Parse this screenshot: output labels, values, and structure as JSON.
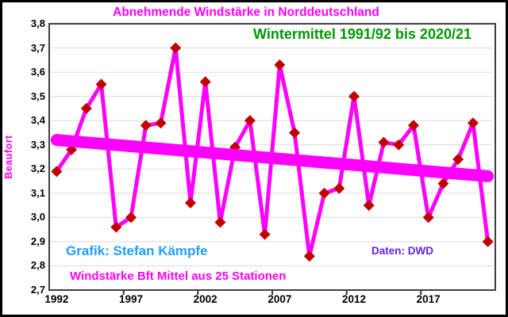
{
  "window": {
    "background": "#FFFFFF",
    "frame_color": "#000000"
  },
  "header": {
    "title": "Abnehmende Windstärke in Norddeutschland",
    "title_color": "#FF00FF",
    "subtitle": "Wintermittel 1991/92 bis 2020/21",
    "subtitle_color": "#009900"
  },
  "annotations": {
    "credit": "Grafik: Stefan Kämpfe",
    "credit_color": "#1E9FFF",
    "source": "Daten: DWD",
    "source_color": "#6A1FE0",
    "caption": "Windstärke Bft Mittel aus 25 Stationen",
    "caption_color": "#FF00FF"
  },
  "axes": {
    "ylabel": "Beaufort",
    "ylabel_color": "#FF00FF",
    "y_tick_labels": [
      "3,8",
      "3,7",
      "3,6",
      "3,5",
      "3,4",
      "3,3",
      "3,2",
      "3,1",
      "3,0",
      "2,9",
      "2,8",
      "2,7"
    ],
    "x_tick_labels": [
      "1992",
      "1997",
      "2002",
      "2007",
      "2012",
      "2017"
    ]
  },
  "chart_data": {
    "type": "line",
    "title": "Abnehmende Windstärke in Norddeutschland",
    "subtitle": "Wintermittel 1991/92 bis 2020/21",
    "xlabel": "",
    "ylabel": "Beaufort",
    "x": [
      1992,
      1993,
      1994,
      1995,
      1996,
      1997,
      1998,
      1999,
      2000,
      2001,
      2002,
      2003,
      2004,
      2005,
      2006,
      2007,
      2008,
      2009,
      2010,
      2011,
      2012,
      2013,
      2014,
      2015,
      2016,
      2017,
      2018,
      2019,
      2020,
      2021
    ],
    "values": [
      3.19,
      3.28,
      3.45,
      3.55,
      2.96,
      3.0,
      3.38,
      3.39,
      3.7,
      3.06,
      3.56,
      2.98,
      3.29,
      3.4,
      2.93,
      3.63,
      3.35,
      2.84,
      3.1,
      3.12,
      3.5,
      3.05,
      3.31,
      3.3,
      3.38,
      3.0,
      3.14,
      3.24,
      3.39,
      2.9
    ],
    "ylim": [
      2.7,
      3.8
    ],
    "ytick_step": 0.1,
    "xticks_every": 5,
    "grid": "horizontal",
    "grid_color": "#DCDCDC",
    "frame_color": "#3F3F3F",
    "tick_color": "#303030",
    "line_color": "#FF00FF",
    "line_width": 5,
    "marker": "diamond",
    "marker_color": "#C00000",
    "marker_half_size": 7,
    "trend": {
      "start": 3.32,
      "end": 3.17,
      "color": "#FF00FF",
      "width": 15
    },
    "legend": "none"
  }
}
